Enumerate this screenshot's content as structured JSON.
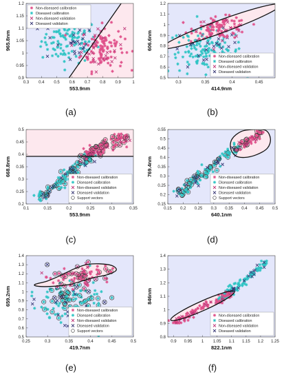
{
  "colors": {
    "non_diseased_region": "#fde8ee",
    "diseased_region": "#e4e7fb",
    "non_diseased_calibration": "#e0508a",
    "diseased_calibration": "#2ec4c4",
    "non_diseased_validation": "#c0397a",
    "diseased_validation": "#3a3a78",
    "support_vector": "#333333",
    "boundary": "#111111"
  },
  "marker_icons": {
    "non_diseased_calibration": "asterisk-marker-icon",
    "diseased_calibration": "asterisk-marker-icon",
    "non_diseased_validation": "x-marker-icon",
    "diseased_validation": "x-marker-icon",
    "support_vectors": "circle-marker-icon"
  },
  "chart_data": [
    {
      "panel": "(a)",
      "type": "scatter",
      "xlabel": "553.9nm",
      "ylabel": "965.8nm",
      "xlim": [
        0.3,
        1.0
      ],
      "ylim": [
        0.9,
        1.2
      ],
      "xticks": [
        "0.3",
        "0.4",
        "0.5",
        "0.6",
        "0.7",
        "0.8",
        "0.9",
        "1"
      ],
      "yticks": [
        "0.9",
        "0.95",
        "1",
        "1.05",
        "1.1",
        "1.15",
        "1.2"
      ],
      "legend_position": "top-left",
      "legend": [
        "Non-diseased calibration",
        "Diseased calibration",
        "Non-diseased validation",
        "Diseased validation"
      ],
      "boundary": {
        "kind": "line",
        "points": [
          [
            0.58,
            0.9
          ],
          [
            0.92,
            1.2
          ]
        ]
      },
      "diseased_region_side": "left",
      "clusters": {
        "diseased": {
          "center": [
            0.58,
            1.05
          ],
          "spread": [
            0.09,
            0.045
          ],
          "calibration_n": 110,
          "validation_n": 25
        },
        "non_diseased": {
          "center": [
            0.8,
            1.02
          ],
          "spread": [
            0.07,
            0.045
          ],
          "calibration_n": 100,
          "validation_n": 25
        }
      },
      "support_vectors": false
    },
    {
      "panel": "(b)",
      "type": "scatter",
      "xlabel": "414.9nm",
      "ylabel": "606.6nm",
      "xlim": [
        0.28,
        0.48
      ],
      "ylim": [
        0.5,
        1.2
      ],
      "xticks": [
        "0.3",
        "0.35",
        "0.4",
        "0.45"
      ],
      "yticks": [
        "0.5",
        "0.6",
        "0.7",
        "0.8",
        "0.9",
        "1",
        "1.1",
        "1.2"
      ],
      "legend_position": "bottom-right",
      "legend": [
        "Non-diseased calibration",
        "Diseased calibration",
        "Non-diseased validation",
        "Diseased validation"
      ],
      "boundary": {
        "kind": "ellipse",
        "center": [
          0.38,
          0.985
        ],
        "semi_axes": [
          0.118,
          0.06
        ],
        "angle_deg": 20
      },
      "diseased_region_side": "outside",
      "clusters": {
        "diseased": {
          "center": [
            0.35,
            0.75
          ],
          "spread": [
            0.035,
            0.1
          ],
          "calibration_n": 130,
          "validation_n": 25
        },
        "non_diseased": {
          "center": [
            0.38,
            0.97
          ],
          "spread": [
            0.025,
            0.05
          ],
          "calibration_n": 90,
          "validation_n": 20
        }
      },
      "support_vectors": false
    },
    {
      "panel": "(c)",
      "type": "scatter",
      "xlabel": "553.9nm",
      "ylabel": "668.8nm",
      "xlim": [
        0.1,
        0.35
      ],
      "ylim": [
        0.2,
        0.5
      ],
      "xticks": [
        "0.1",
        "0.15",
        "0.2",
        "0.25",
        "0.3",
        "0.35"
      ],
      "yticks": [
        "0.2",
        "0.25",
        "0.3",
        "0.35",
        "0.4",
        "0.45",
        "0.5"
      ],
      "legend_position": "bottom-right",
      "legend": [
        "Non-diseased calibration",
        "Diseased calibration",
        "Non-diseased validation",
        "Diseased validation",
        "Support vectors"
      ],
      "boundary": {
        "kind": "line",
        "points": [
          [
            0.1,
            0.392
          ],
          [
            0.35,
            0.392
          ]
        ]
      },
      "diseased_region_side": "below",
      "clusters": {
        "diseased": {
          "trend": [
            [
              0.13,
              0.22
            ],
            [
              0.25,
              0.4
            ]
          ],
          "spread": 0.012,
          "calibration_n": 120,
          "validation_n": 20
        },
        "non_diseased": {
          "trend": [
            [
              0.23,
              0.39
            ],
            [
              0.33,
              0.47
            ]
          ],
          "spread": 0.012,
          "calibration_n": 90,
          "validation_n": 20
        }
      },
      "support_vectors": true
    },
    {
      "panel": "(d)",
      "type": "scatter",
      "xlabel": "640.1nm",
      "ylabel": "769.4nm",
      "xlim": [
        0.15,
        0.5
      ],
      "ylim": [
        0.15,
        0.55
      ],
      "xticks": [
        "0.15",
        "0.2",
        "0.25",
        "0.3",
        "0.35",
        "0.4",
        "0.45",
        "0.5"
      ],
      "yticks": [
        "0.15",
        "0.2",
        "0.25",
        "0.3",
        "0.35",
        "0.4",
        "0.45",
        "0.5",
        "0.55"
      ],
      "legend_position": "bottom-right",
      "legend": [
        "Non-diseased calibration",
        "Diseased calibration",
        "Non-diseased validation",
        "Diseased validation",
        "Support vectors"
      ],
      "boundary": {
        "kind": "closed-curve",
        "points": [
          [
            0.355,
            0.45
          ],
          [
            0.36,
            0.5
          ],
          [
            0.39,
            0.54
          ],
          [
            0.43,
            0.55
          ],
          [
            0.47,
            0.545
          ],
          [
            0.485,
            0.5
          ],
          [
            0.475,
            0.45
          ],
          [
            0.44,
            0.415
          ],
          [
            0.4,
            0.4
          ],
          [
            0.37,
            0.41
          ]
        ]
      },
      "diseased_region_side": "outside",
      "clusters": {
        "diseased": {
          "trend": [
            [
              0.18,
              0.2
            ],
            [
              0.38,
              0.46
            ]
          ],
          "spread": 0.015,
          "calibration_n": 110,
          "validation_n": 20
        },
        "non_diseased": {
          "trend": [
            [
              0.37,
              0.44
            ],
            [
              0.46,
              0.54
            ]
          ],
          "spread": 0.012,
          "calibration_n": 45,
          "validation_n": 10
        }
      },
      "support_vectors": true
    },
    {
      "panel": "(e)",
      "type": "scatter",
      "xlabel": "419.7nm",
      "ylabel": "659.2nm",
      "xlim": [
        0.25,
        0.5
      ],
      "ylim": [
        0.5,
        1.4
      ],
      "xticks": [
        "0.25",
        "0.3",
        "0.35",
        "0.4",
        "0.45",
        "0.5"
      ],
      "yticks": [
        "0.5",
        "0.6",
        "0.7",
        "0.8",
        "0.9",
        "1",
        "1.1",
        "1.2",
        "1.3",
        "1.4"
      ],
      "legend_position": "bottom-right",
      "legend": [
        "Non-diseased calibration",
        "Diseased calibration",
        "Non-diseased validation",
        "Diseased validation",
        "Support vectors"
      ],
      "boundary": {
        "kind": "closed-curve",
        "points": [
          [
            0.27,
            1.08
          ],
          [
            0.3,
            1.12
          ],
          [
            0.33,
            1.18
          ],
          [
            0.36,
            1.25
          ],
          [
            0.39,
            1.3
          ],
          [
            0.42,
            1.31
          ],
          [
            0.45,
            1.29
          ],
          [
            0.46,
            1.24
          ],
          [
            0.44,
            1.19
          ],
          [
            0.41,
            1.16
          ],
          [
            0.38,
            1.12
          ],
          [
            0.35,
            1.08
          ],
          [
            0.31,
            1.06
          ],
          [
            0.28,
            1.06
          ]
        ]
      },
      "diseased_region_side": "outside",
      "clusters": {
        "diseased": {
          "center": [
            0.35,
            0.9
          ],
          "spread": [
            0.04,
            0.12
          ],
          "calibration_n": 120,
          "validation_n": 25
        },
        "non_diseased": {
          "center": [
            0.38,
            1.18
          ],
          "spread": [
            0.035,
            0.06
          ],
          "calibration_n": 70,
          "validation_n": 15
        }
      },
      "support_vectors": true
    },
    {
      "panel": "(f)",
      "type": "scatter",
      "xlabel": "822.1nm",
      "ylabel": "846nm",
      "xlim": [
        0.88,
        1.25
      ],
      "ylim": [
        0.8,
        1.4
      ],
      "xticks": [
        "0.9",
        "0.95",
        "1",
        "1.05",
        "1.1",
        "1.15",
        "1.2",
        "1.25"
      ],
      "yticks": [
        "0.8",
        "0.9",
        "1",
        "1.1",
        "1.2",
        "1.3",
        "1.4"
      ],
      "legend_position": "bottom-right",
      "legend": [
        "Non-diseased calibration",
        "Diseased calibration",
        "Non-diseased validation",
        "Diseased validation"
      ],
      "boundary": {
        "kind": "ellipse",
        "center": [
          1.0,
          1.03
        ],
        "semi_axes": [
          0.12,
          0.035
        ],
        "angle_deg": 24
      },
      "diseased_region_side": "outside",
      "clusters": {
        "diseased": {
          "trend": [
            [
              1.05,
              1.05
            ],
            [
              1.22,
              1.35
            ]
          ],
          "spread": 0.012,
          "calibration_n": 120,
          "validation_n": 20
        },
        "non_diseased": {
          "trend": [
            [
              0.9,
              0.9
            ],
            [
              1.1,
              1.13
            ]
          ],
          "spread": 0.012,
          "calibration_n": 90,
          "validation_n": 20
        }
      },
      "support_vectors": false
    }
  ]
}
